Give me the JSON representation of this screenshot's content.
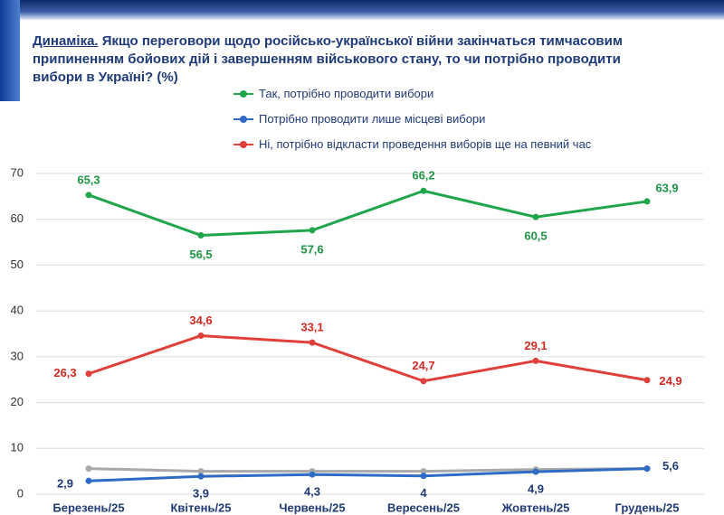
{
  "chart_data": {
    "type": "line",
    "title_prefix": "Динаміка.",
    "title": "Якщо переговори щодо російсько-української війни закінчаться тимчасовим припиненням бойових дій і завершенням військового стану, то чи потрібно проводити вибори в Україні? (%)",
    "categories": [
      "Березень/25",
      "Квітень/25",
      "Червень/25",
      "Вересень/25",
      "Жовтень/25",
      "Грудень/25"
    ],
    "ylim": [
      0,
      70
    ],
    "yticks": [
      0,
      10,
      20,
      30,
      40,
      50,
      60,
      70
    ],
    "grid": true,
    "series": [
      {
        "name": "Так, потрібно проводити вибори",
        "color": "#1fa64a",
        "values": [
          65.3,
          56.5,
          57.6,
          66.2,
          60.5,
          63.9
        ],
        "value_labels": [
          "65,3",
          "56,5",
          "57,6",
          "66,2",
          "60,5",
          "63,9"
        ]
      },
      {
        "name": "Потрібно проводити лише місцеві вибори",
        "color": "#2f6bc4",
        "values": [
          2.9,
          3.9,
          4.3,
          4,
          4.9,
          5.6
        ],
        "value_labels": [
          "2,9",
          "3,9",
          "4,3",
          "4",
          "4,9",
          "5,6"
        ]
      },
      {
        "name": "Ні, потрібно відкласти проведення виборів ще на певний час",
        "color": "#e0403a",
        "values": [
          26.3,
          34.6,
          33.1,
          24.7,
          29.1,
          24.9
        ],
        "value_labels": [
          "26,3",
          "34,6",
          "33,1",
          "24,7",
          "29,1",
          "24,9"
        ]
      },
      {
        "name": null,
        "color": "#a9a9a9",
        "values": [
          5.6,
          5.0,
          5.0,
          5.0,
          5.4,
          5.6
        ]
      }
    ]
  }
}
